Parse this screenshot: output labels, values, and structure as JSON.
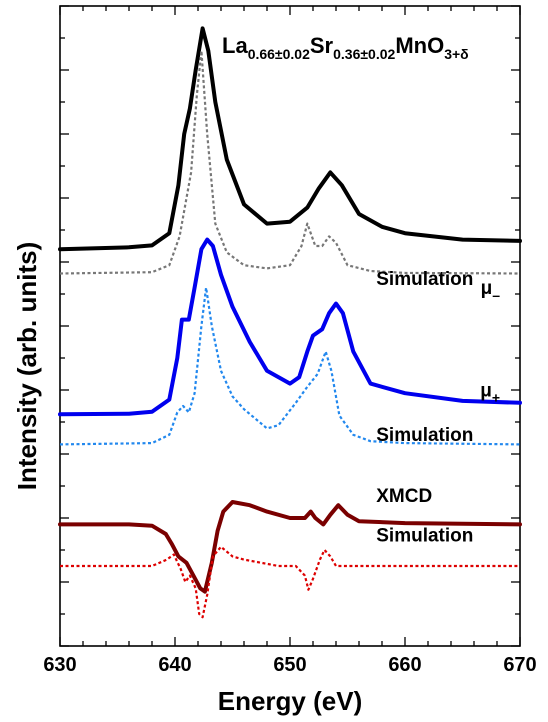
{
  "chart_data": {
    "type": "line",
    "title": {
      "parts": [
        {
          "text": "La",
          "sub": false
        },
        {
          "text": "0.66±0.02",
          "sub": true
        },
        {
          "text": "Sr",
          "sub": false
        },
        {
          "text": "0.36±0.02",
          "sub": true
        },
        {
          "text": "MnO",
          "sub": false
        },
        {
          "text": "3+δ",
          "sub": true
        }
      ]
    },
    "xlabel": "Energy (eV)",
    "ylabel": "Intensity (arb. units)",
    "xlim": [
      630,
      670
    ],
    "ylim": [
      0,
      100
    ],
    "xticks": [
      "630",
      "640",
      "650",
      "660",
      "670"
    ],
    "grid": false,
    "series": [
      {
        "name": "μ_",
        "name_base": "μ",
        "name_sub": "_",
        "color": "#000000",
        "style": "solid",
        "label_x": 670.5,
        "label_y": 55,
        "points": [
          [
            630,
            62
          ],
          [
            636,
            62.3
          ],
          [
            638,
            62.6
          ],
          [
            639.5,
            64.5
          ],
          [
            640.3,
            72
          ],
          [
            640.8,
            80
          ],
          [
            641.3,
            84
          ],
          [
            641.8,
            90
          ],
          [
            642.4,
            96.5
          ],
          [
            642.9,
            93
          ],
          [
            643.5,
            85
          ],
          [
            644.5,
            76
          ],
          [
            646,
            69
          ],
          [
            648,
            66
          ],
          [
            650,
            66.3
          ],
          [
            651.5,
            68.5
          ],
          [
            652.5,
            71.5
          ],
          [
            653.5,
            74
          ],
          [
            654.5,
            72
          ],
          [
            656,
            67.5
          ],
          [
            658,
            65.5
          ],
          [
            660,
            64.5
          ],
          [
            665,
            63.5
          ],
          [
            670,
            63.3
          ]
        ]
      },
      {
        "name": "Simulation",
        "color": "#777777",
        "style": "dotted",
        "label_x": 657.5,
        "label_y": 56.4,
        "points": [
          [
            630,
            58.2
          ],
          [
            638,
            58.4
          ],
          [
            639.5,
            59.5
          ],
          [
            640.4,
            64
          ],
          [
            641,
            70
          ],
          [
            641.4,
            74
          ],
          [
            641.9,
            86
          ],
          [
            642.3,
            93
          ],
          [
            642.8,
            80
          ],
          [
            643.5,
            66
          ],
          [
            644.5,
            61.5
          ],
          [
            646,
            59.5
          ],
          [
            648,
            59
          ],
          [
            650,
            59.5
          ],
          [
            651,
            62.5
          ],
          [
            651.5,
            66
          ],
          [
            652.2,
            62.5
          ],
          [
            652.8,
            62.5
          ],
          [
            653.4,
            64
          ],
          [
            654,
            63
          ],
          [
            655,
            59.5
          ],
          [
            657,
            58.6
          ],
          [
            660,
            58.3
          ],
          [
            670,
            58.2
          ]
        ]
      },
      {
        "name": "μ+",
        "name_base": "μ",
        "name_sub": "+",
        "color": "#0000ee",
        "style": "solid",
        "label_x": 670.5,
        "label_y": 39,
        "points": [
          [
            630,
            36.2
          ],
          [
            636,
            36.3
          ],
          [
            638,
            36.6
          ],
          [
            639.5,
            38.5
          ],
          [
            640.2,
            45
          ],
          [
            640.6,
            51
          ],
          [
            641.2,
            51
          ],
          [
            641.7,
            56
          ],
          [
            642.3,
            62
          ],
          [
            642.8,
            63.5
          ],
          [
            643.3,
            62.5
          ],
          [
            644,
            58
          ],
          [
            645,
            53
          ],
          [
            646.5,
            47.5
          ],
          [
            648,
            43
          ],
          [
            650,
            41
          ],
          [
            650.8,
            42
          ],
          [
            651.5,
            46
          ],
          [
            652,
            48.5
          ],
          [
            652.8,
            49.5
          ],
          [
            653.4,
            52
          ],
          [
            654,
            53.5
          ],
          [
            654.6,
            52
          ],
          [
            655.5,
            46
          ],
          [
            657,
            41
          ],
          [
            660,
            39.5
          ],
          [
            665,
            38.3
          ],
          [
            670,
            38
          ]
        ]
      },
      {
        "name": "Simulation",
        "color": "#2288ee",
        "style": "dotted",
        "label_x": 657.5,
        "label_y": 32,
        "points": [
          [
            630,
            31.5
          ],
          [
            638,
            31.7
          ],
          [
            639.5,
            33
          ],
          [
            640.2,
            36.5
          ],
          [
            640.7,
            37.5
          ],
          [
            641.2,
            36.5
          ],
          [
            641.7,
            39.5
          ],
          [
            642.3,
            50
          ],
          [
            642.7,
            56
          ],
          [
            643.2,
            50
          ],
          [
            644,
            43
          ],
          [
            645,
            39
          ],
          [
            646,
            37
          ],
          [
            647,
            35.5
          ],
          [
            648,
            34
          ],
          [
            649,
            34.5
          ],
          [
            650.5,
            38
          ],
          [
            651.5,
            40.5
          ],
          [
            652.4,
            42.5
          ],
          [
            653.1,
            46
          ],
          [
            653.6,
            43
          ],
          [
            654.3,
            36
          ],
          [
            655.5,
            33
          ],
          [
            657,
            32
          ],
          [
            660,
            31.7
          ],
          [
            670,
            31.5
          ]
        ]
      },
      {
        "name": "XMCD",
        "color": "#7a0000",
        "style": "solid",
        "label_x": 657.5,
        "label_y": 22.5,
        "points": [
          [
            630,
            19
          ],
          [
            636,
            19
          ],
          [
            638,
            18.8
          ],
          [
            639.2,
            17.5
          ],
          [
            639.7,
            16
          ],
          [
            640.3,
            14
          ],
          [
            641,
            13
          ],
          [
            641.6,
            11
          ],
          [
            642.2,
            9
          ],
          [
            642.6,
            8.5
          ],
          [
            643.2,
            13
          ],
          [
            643.7,
            18
          ],
          [
            644.2,
            21
          ],
          [
            645,
            22.5
          ],
          [
            646.5,
            22
          ],
          [
            648,
            21
          ],
          [
            650,
            20
          ],
          [
            651.3,
            20
          ],
          [
            651.8,
            21
          ],
          [
            652.2,
            20
          ],
          [
            652.9,
            19
          ],
          [
            653.5,
            20.5
          ],
          [
            654.2,
            22
          ],
          [
            655,
            20.5
          ],
          [
            656,
            19.5
          ],
          [
            660,
            19.2
          ],
          [
            670,
            19
          ]
        ]
      },
      {
        "name": "Simulation",
        "color": "#dd0000",
        "style": "dotted",
        "label_x": 657.5,
        "label_y": 16.3,
        "points": [
          [
            630,
            12.5
          ],
          [
            638,
            12.5
          ],
          [
            639.3,
            13.5
          ],
          [
            639.9,
            14.3
          ],
          [
            640.5,
            12
          ],
          [
            640.9,
            10
          ],
          [
            641.3,
            11
          ],
          [
            641.8,
            9
          ],
          [
            642.1,
            5
          ],
          [
            642.4,
            4.5
          ],
          [
            642.8,
            8
          ],
          [
            643.3,
            14
          ],
          [
            644,
            15.5
          ],
          [
            645,
            14
          ],
          [
            646,
            13.5
          ],
          [
            647.5,
            13
          ],
          [
            649,
            12.5
          ],
          [
            650.5,
            12.5
          ],
          [
            651.3,
            11
          ],
          [
            651.6,
            8.8
          ],
          [
            652,
            10.5
          ],
          [
            652.6,
            13.5
          ],
          [
            653,
            15
          ],
          [
            653.5,
            14
          ],
          [
            654,
            12.5
          ],
          [
            656,
            12.5
          ],
          [
            670,
            12.5
          ]
        ]
      }
    ]
  }
}
